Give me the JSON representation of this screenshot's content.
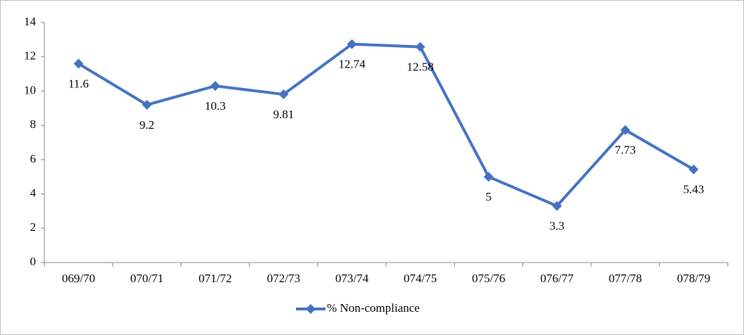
{
  "chart_data": {
    "type": "line",
    "categories": [
      "069/70",
      "070/71",
      "071/72",
      "072/73",
      "073/74",
      "074/75",
      "075/76",
      "076/77",
      "077/78",
      "078/79"
    ],
    "series": [
      {
        "name": "% Non-compliance",
        "color": "#4472c4",
        "values": [
          11.6,
          9.2,
          10.3,
          9.81,
          12.74,
          12.58,
          5,
          3.3,
          7.73,
          5.43
        ]
      }
    ],
    "ylim": [
      0,
      14
    ],
    "yticks": [
      0,
      2,
      4,
      6,
      8,
      10,
      12,
      14
    ],
    "grid": false,
    "legend": "bottom"
  }
}
